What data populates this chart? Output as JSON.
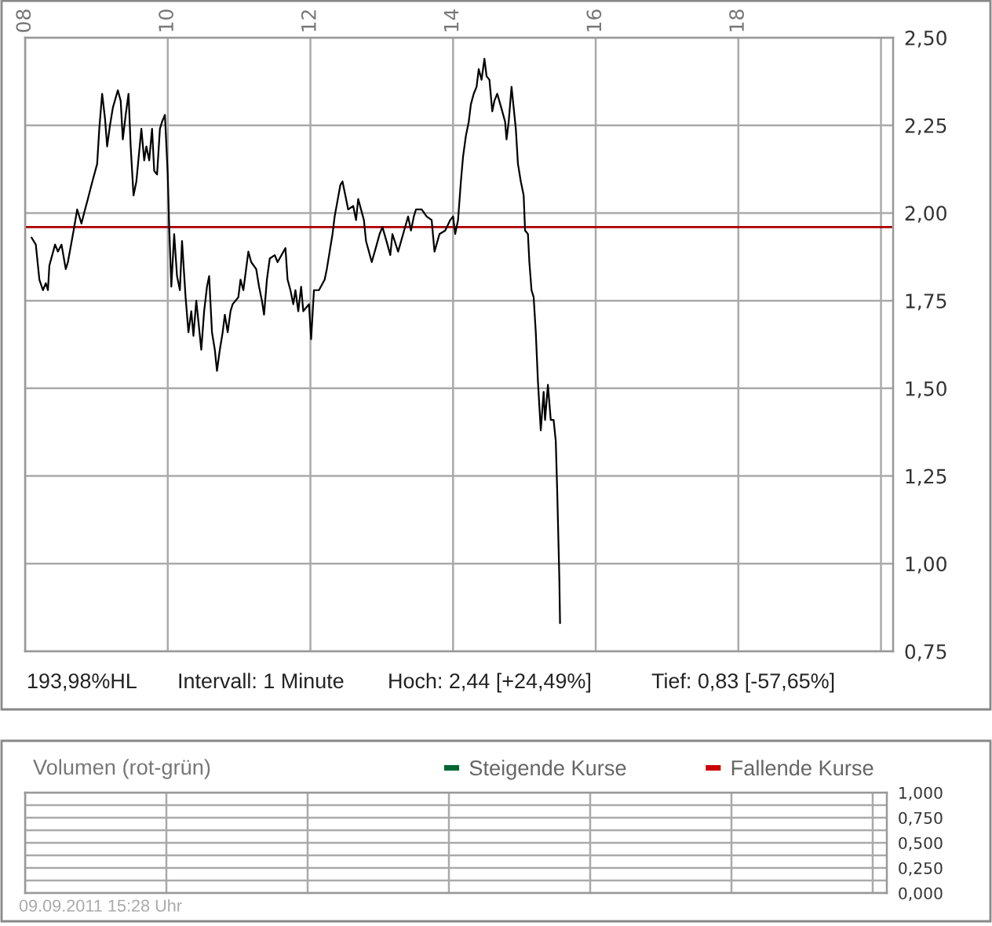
{
  "chart_data": [
    {
      "type": "line",
      "series": [
        {
          "color": "#000000",
          "x": [
            8.09,
            8.15,
            8.2,
            8.25,
            8.29,
            8.32,
            8.34,
            8.42,
            8.46,
            8.51,
            8.57,
            8.6,
            8.68,
            8.73,
            8.79,
            8.84,
            8.88,
            8.93,
            8.97,
            9.01,
            9.04,
            9.08,
            9.12,
            9.15,
            9.19,
            9.23,
            9.3,
            9.34,
            9.37,
            9.41,
            9.45,
            9.48,
            9.52,
            9.56,
            9.63,
            9.67,
            9.7,
            9.74,
            9.78,
            9.81,
            9.85,
            9.89,
            9.92,
            9.96,
            10.0,
            10.02,
            10.05,
            10.09,
            10.13,
            10.17,
            10.2,
            10.25,
            10.29,
            10.33,
            10.36,
            10.4,
            10.47,
            10.51,
            10.55,
            10.58,
            10.62,
            10.66,
            10.69,
            10.73,
            10.77,
            10.8,
            10.84,
            10.88,
            10.91,
            10.99,
            11.02,
            11.06,
            11.13,
            11.17,
            11.24,
            11.28,
            11.32,
            11.35,
            11.39,
            11.43,
            11.5,
            11.54,
            11.65,
            11.68,
            11.72,
            11.76,
            11.79,
            11.83,
            11.87,
            11.9,
            11.98,
            12.01,
            12.05,
            12.12,
            12.2,
            12.23,
            12.27,
            12.31,
            12.34,
            12.42,
            12.45,
            12.49,
            12.53,
            12.6,
            12.64,
            12.67,
            12.75,
            12.78,
            12.82,
            12.86,
            12.93,
            12.97,
            13.01,
            13.08,
            13.12,
            13.15,
            13.23,
            13.3,
            13.37,
            13.41,
            13.45,
            13.48,
            13.56,
            13.63,
            13.7,
            13.74,
            13.81,
            13.89,
            13.96,
            14.0,
            14.03,
            14.07,
            14.11,
            14.14,
            14.18,
            14.22,
            14.25,
            14.29,
            14.33,
            14.36,
            14.4,
            14.44,
            14.47,
            14.51,
            14.55,
            14.58,
            14.62,
            14.69,
            14.73,
            14.75,
            14.78,
            14.82,
            14.84,
            14.88,
            14.91,
            14.95,
            14.99,
            15.01,
            15.05,
            15.07,
            15.1,
            15.13,
            15.16,
            15.19,
            15.23,
            15.27,
            15.29,
            15.33,
            15.37,
            15.41,
            15.44,
            15.46,
            15.49,
            15.5
          ],
          "values": [
            1.93,
            1.91,
            1.81,
            1.78,
            1.8,
            1.78,
            1.85,
            1.91,
            1.89,
            1.91,
            1.84,
            1.86,
            1.95,
            2.01,
            1.97,
            2.01,
            2.04,
            2.08,
            2.11,
            2.14,
            2.24,
            2.34,
            2.27,
            2.19,
            2.25,
            2.3,
            2.35,
            2.32,
            2.21,
            2.28,
            2.34,
            2.19,
            2.05,
            2.09,
            2.24,
            2.15,
            2.19,
            2.15,
            2.24,
            2.12,
            2.11,
            2.24,
            2.26,
            2.28,
            2.11,
            1.96,
            1.79,
            1.94,
            1.82,
            1.78,
            1.92,
            1.76,
            1.66,
            1.72,
            1.65,
            1.75,
            1.61,
            1.72,
            1.79,
            1.82,
            1.66,
            1.61,
            1.55,
            1.61,
            1.66,
            1.71,
            1.66,
            1.72,
            1.74,
            1.76,
            1.81,
            1.78,
            1.89,
            1.86,
            1.84,
            1.79,
            1.75,
            1.71,
            1.81,
            1.87,
            1.88,
            1.86,
            1.9,
            1.81,
            1.78,
            1.74,
            1.78,
            1.72,
            1.79,
            1.72,
            1.74,
            1.64,
            1.78,
            1.78,
            1.81,
            1.84,
            1.89,
            1.94,
            1.99,
            2.08,
            2.09,
            2.05,
            2.01,
            2.02,
            1.98,
            2.04,
            1.98,
            1.92,
            1.89,
            1.86,
            1.91,
            1.94,
            1.96,
            1.91,
            1.88,
            1.94,
            1.89,
            1.94,
            1.99,
            1.95,
            1.99,
            2.01,
            2.01,
            1.99,
            1.98,
            1.89,
            1.94,
            1.95,
            1.98,
            1.99,
            1.94,
            1.98,
            2.09,
            2.16,
            2.22,
            2.26,
            2.31,
            2.34,
            2.36,
            2.41,
            2.38,
            2.44,
            2.39,
            2.38,
            2.29,
            2.32,
            2.34,
            2.29,
            2.26,
            2.21,
            2.26,
            2.36,
            2.32,
            2.24,
            2.14,
            2.09,
            2.05,
            1.95,
            1.94,
            1.86,
            1.78,
            1.76,
            1.66,
            1.52,
            1.38,
            1.49,
            1.41,
            1.51,
            1.41,
            1.41,
            1.35,
            1.21,
            0.96,
            0.83
          ]
        }
      ],
      "line_style": "solid",
      "xlim": [
        8,
        20.17
      ],
      "xticks": [
        {
          "value": 8,
          "label": "08"
        },
        {
          "value": 10,
          "label": "10"
        },
        {
          "value": 12,
          "label": "12"
        },
        {
          "value": 14,
          "label": "14"
        },
        {
          "value": 16,
          "label": "16"
        },
        {
          "value": 18,
          "label": "18"
        },
        {
          "value": 20,
          "label": null
        }
      ],
      "ylim": [
        0.75,
        2.5
      ],
      "yticks": [
        {
          "value": 0.75,
          "label": "0,75"
        },
        {
          "value": 1.0,
          "label": "1,00"
        },
        {
          "value": 1.25,
          "label": "1,25"
        },
        {
          "value": 1.5,
          "label": "1,50"
        },
        {
          "value": 1.75,
          "label": "1,75"
        },
        {
          "value": 2.0,
          "label": "2,00"
        },
        {
          "value": 2.25,
          "label": "2,25"
        },
        {
          "value": 2.5,
          "label": "2,50"
        }
      ],
      "grid": true,
      "ref_lines": [
        {
          "axis": "y",
          "value": 1.96,
          "color": "#aa0000"
        }
      ],
      "annotations": [
        "193,98%HL",
        "Intervall: 1 Minute",
        "Hoch: 2,44 [+24,49%]",
        "Tief: 0,83 [-57,65%]"
      ]
    },
    {
      "type": "bar",
      "title": "Volumen (rot-grün)",
      "categories": [
        null,
        null,
        null,
        null,
        null,
        null
      ],
      "series": [
        {
          "name": "Steigende Kurse",
          "color": "#006633",
          "values": [
            null,
            null,
            null,
            null,
            null,
            null
          ]
        },
        {
          "name": "Fallende Kurse",
          "color": "#cc0000",
          "values": [
            null,
            null,
            null,
            null,
            null,
            null
          ]
        }
      ],
      "legend": "top right",
      "ylim": [
        0,
        1
      ],
      "yticks": [
        {
          "value": 0,
          "label": "0,000"
        },
        {
          "value": 0.125,
          "label": null
        },
        {
          "value": 0.25,
          "label": "0,250"
        },
        {
          "value": 0.375,
          "label": null
        },
        {
          "value": 0.5,
          "label": "0,500"
        },
        {
          "value": 0.625,
          "label": null
        },
        {
          "value": 0.75,
          "label": "0,750"
        },
        {
          "value": 0.875,
          "label": null
        },
        {
          "value": 1,
          "label": "1,000"
        }
      ],
      "tick_labels": "y",
      "grid": true,
      "annotations": [
        "09.09.2011 15:28 Uhr"
      ]
    }
  ]
}
